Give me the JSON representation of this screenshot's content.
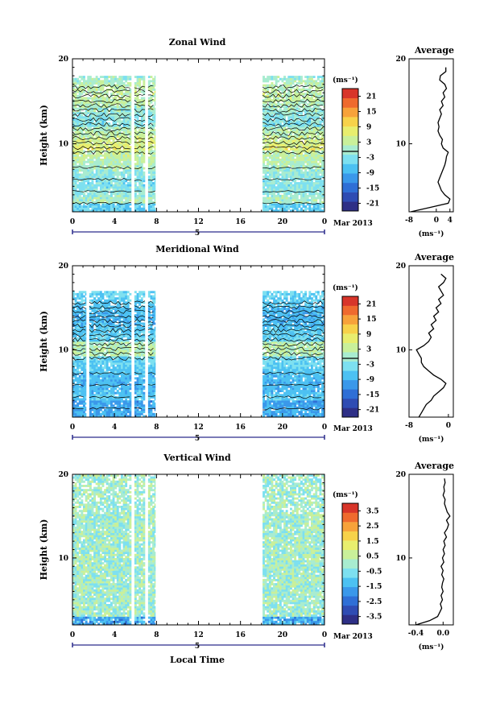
{
  "colors": {
    "scale": [
      "#2e2f86",
      "#2f4cb3",
      "#2f6fd6",
      "#3a98ea",
      "#4cc1f2",
      "#7de0f0",
      "#a8ecd0",
      "#c9f09a",
      "#e8ee6e",
      "#f7d24a",
      "#f7a23a",
      "#ef6a2e",
      "#d8352a"
    ],
    "contour": "#000000",
    "nav": "#2c2c8c"
  },
  "chart_data": [
    {
      "type": "heatmap",
      "panel": "zonal",
      "title": "Zonal Wind",
      "ylabel": "Height (km)",
      "xlabel": "",
      "x_ticks": [
        "0",
        "4",
        "8",
        "12",
        "16",
        "20",
        "0"
      ],
      "y_ticks": [
        "20",
        "10"
      ],
      "ylim": [
        2,
        20
      ],
      "xlim": [
        0,
        24
      ],
      "date_marker": "5",
      "date_label": "Mar 2013",
      "colorbar_unit": "(ms⁻¹)",
      "colorbar_ticks": [
        "21",
        "15",
        "9",
        "3",
        "-3",
        "-9",
        "-15",
        "-21"
      ],
      "colorbar_range": [
        -24,
        24
      ],
      "data_segments_hours": [
        [
          0,
          5.6
        ],
        [
          5.9,
          6.9
        ],
        [
          7.2,
          7.9
        ],
        [
          18.1,
          24
        ]
      ],
      "top_km": 18,
      "contours": true,
      "average_profile": {
        "title": "Average",
        "xlabel": "(ms⁻¹)",
        "x_ticks": [
          "-8",
          "0",
          "4"
        ],
        "xlim": [
          -8,
          5
        ],
        "y_ticks": [
          "20",
          "10"
        ],
        "heights_km": [
          2,
          2.5,
          3,
          3.5,
          4,
          4.5,
          5,
          5.5,
          6,
          6.5,
          7,
          7.5,
          8,
          8.5,
          9,
          9.5,
          10,
          10.5,
          11,
          11.5,
          12,
          12.5,
          13,
          13.5,
          14,
          14.5,
          15,
          15.5,
          16,
          16.5,
          17,
          17.5,
          18,
          18.5,
          19
        ],
        "values": [
          -7.5,
          -2,
          3.5,
          4,
          2.5,
          1.5,
          1,
          0.5,
          1,
          1.5,
          2,
          2.5,
          2.8,
          3,
          3.5,
          2,
          1.5,
          1.8,
          1,
          0.5,
          0.8,
          0.5,
          1,
          1.5,
          1,
          2,
          1.5,
          2.5,
          2,
          3,
          2.5,
          1,
          1.2,
          2.8,
          2.8
        ]
      }
    },
    {
      "type": "heatmap",
      "panel": "meridional",
      "title": "Meridional Wind",
      "ylabel": "Height (km)",
      "xlabel": "",
      "x_ticks": [
        "0",
        "4",
        "8",
        "12",
        "16",
        "20",
        "0"
      ],
      "y_ticks": [
        "20",
        "10"
      ],
      "ylim": [
        2,
        20
      ],
      "xlim": [
        0,
        24
      ],
      "date_marker": "5",
      "date_label": "Mar 2013",
      "colorbar_unit": "(ms⁻¹)",
      "colorbar_ticks": [
        "21",
        "15",
        "9",
        "3",
        "-3",
        "-9",
        "-15",
        "-21"
      ],
      "colorbar_range": [
        -24,
        24
      ],
      "data_segments_hours": [
        [
          0,
          1.3
        ],
        [
          1.6,
          5.6
        ],
        [
          5.9,
          6.9
        ],
        [
          7.2,
          7.9
        ],
        [
          18.1,
          24
        ]
      ],
      "top_km": 17,
      "contours": true,
      "average_profile": {
        "title": "Average",
        "xlabel": "(ms⁻¹)",
        "x_ticks": [
          "-8",
          "0"
        ],
        "xlim": [
          -8,
          1
        ],
        "y_ticks": [
          "20",
          "10"
        ],
        "heights_km": [
          2,
          2.5,
          3,
          3.5,
          4,
          4.5,
          5,
          5.5,
          6,
          6.5,
          7,
          7.5,
          8,
          8.5,
          9,
          9.5,
          10,
          10.5,
          11,
          11.5,
          12,
          12.5,
          13,
          13.5,
          14,
          14.5,
          15,
          15.5,
          16,
          16.5,
          17,
          17.5,
          18,
          18.5,
          19
        ],
        "values": [
          -6,
          -5.5,
          -5,
          -4.5,
          -3.5,
          -3,
          -2,
          -1,
          -0.5,
          -1.5,
          -3,
          -4,
          -5,
          -5.5,
          -5.5,
          -6,
          -6.5,
          -5,
          -4,
          -3.5,
          -4,
          -3,
          -3.5,
          -2.5,
          -3,
          -2,
          -2.5,
          -1.5,
          -2,
          -1,
          -1.5,
          -2,
          -1,
          -0.5,
          -1.5
        ]
      }
    },
    {
      "type": "heatmap",
      "panel": "vertical",
      "title": "Vertical Wind",
      "ylabel": "Height (km)",
      "xlabel": "Local Time",
      "x_ticks": [
        "0",
        "4",
        "8",
        "12",
        "16",
        "20",
        "0"
      ],
      "y_ticks": [
        "20",
        "10"
      ],
      "ylim": [
        2,
        20
      ],
      "xlim": [
        0,
        24
      ],
      "date_marker": "5",
      "date_label": "Mar 2013",
      "colorbar_unit": "(ms⁻¹)",
      "colorbar_ticks": [
        "3.5",
        "2.5",
        "1.5",
        "0.5",
        "-0.5",
        "-1.5",
        "-2.5",
        "-3.5"
      ],
      "colorbar_range": [
        -4,
        4
      ],
      "data_segments_hours": [
        [
          0,
          5.6
        ],
        [
          5.9,
          6.9
        ],
        [
          7.2,
          7.9
        ],
        [
          18.1,
          24
        ]
      ],
      "top_km": 20,
      "contours": false,
      "average_profile": {
        "title": "Average",
        "xlabel": "(ms⁻¹)",
        "x_ticks": [
          "-0.4",
          "0.0"
        ],
        "xlim": [
          -0.5,
          0.15
        ],
        "y_ticks": [
          "20",
          "10"
        ],
        "heights_km": [
          2,
          2.5,
          3,
          3.5,
          4,
          4.5,
          5,
          5.5,
          6,
          6.5,
          7,
          7.5,
          8,
          8.5,
          9,
          9.5,
          10,
          10.5,
          11,
          11.5,
          12,
          12.5,
          13,
          13.5,
          14,
          14.5,
          15,
          15.5,
          16,
          16.5,
          17,
          17.5,
          18,
          18.5,
          19,
          19.5
        ],
        "values": [
          -0.4,
          -0.2,
          -0.08,
          -0.05,
          -0.02,
          -0.04,
          -0.01,
          -0.03,
          0.0,
          -0.02,
          -0.01,
          0.01,
          -0.02,
          0.0,
          -0.03,
          0.01,
          -0.01,
          0.02,
          0.0,
          0.03,
          0.01,
          0.05,
          0.02,
          0.06,
          0.08,
          0.05,
          0.1,
          0.06,
          0.04,
          0.02,
          0.03,
          0.0,
          0.02,
          0.01,
          0.03,
          0.02
        ]
      }
    }
  ]
}
